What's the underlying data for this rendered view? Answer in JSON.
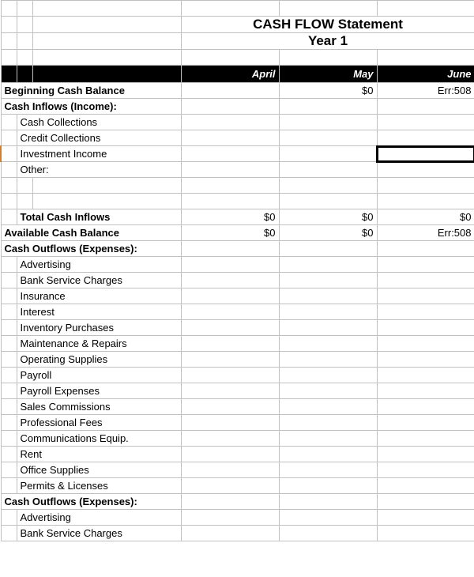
{
  "title_main": "CASH FLOW Statement",
  "title_sub": "Year 1",
  "months": {
    "m1": "April",
    "m2": "May",
    "m3": "June"
  },
  "rows": {
    "beginning": {
      "label": "Beginning Cash Balance",
      "m1": "",
      "m2": "$0",
      "m3": "Err:508"
    },
    "inflows_header": {
      "label": "Cash Inflows (Income):"
    },
    "cash_collections": {
      "label": "Cash Collections"
    },
    "credit_collections": {
      "label": "Credit Collections"
    },
    "investment_income": {
      "label": "Investment Income"
    },
    "other": {
      "label": "Other:"
    },
    "total_inflows": {
      "label": "Total Cash Inflows",
      "m1": "$0",
      "m2": "$0",
      "m3": "$0"
    },
    "available": {
      "label": "Available Cash Balance",
      "m1": "$0",
      "m2": "$0",
      "m3": "Err:508"
    },
    "outflows_header": {
      "label": "Cash Outflows (Expenses):"
    },
    "advertising": {
      "label": "Advertising"
    },
    "bank_service": {
      "label": "Bank Service Charges"
    },
    "insurance": {
      "label": "Insurance"
    },
    "interest": {
      "label": "Interest"
    },
    "inventory": {
      "label": "Inventory Purchases"
    },
    "maintenance": {
      "label": "Maintenance & Repairs"
    },
    "operating": {
      "label": "Operating Supplies"
    },
    "payroll": {
      "label": "Payroll"
    },
    "payroll_exp": {
      "label": "Payroll Expenses"
    },
    "sales_comm": {
      "label": "Sales Commissions"
    },
    "prof_fees": {
      "label": "Professional Fees"
    },
    "comm_equip": {
      "label": "Communications Equip."
    },
    "rent": {
      "label": "Rent"
    },
    "office": {
      "label": "Office Supplies"
    },
    "permits": {
      "label": "Permits & Licenses"
    },
    "outflows_header2": {
      "label": "Cash Outflows (Expenses):"
    },
    "advertising2": {
      "label": "Advertising"
    },
    "bank_service2": {
      "label": "Bank Service Charges"
    }
  },
  "colors": {
    "grid": "#c0c0c0",
    "black": "#000000",
    "indent": "#d08030",
    "bg": "#ffffff"
  }
}
